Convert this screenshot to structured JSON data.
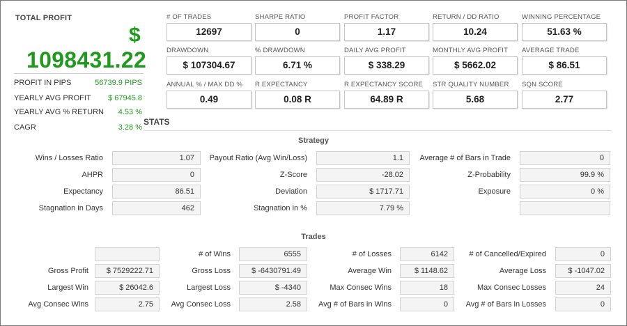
{
  "profit": {
    "title": "TOTAL PROFIT",
    "currency": "$",
    "value": "1098431.22",
    "rows": [
      {
        "label": "PROFIT IN PIPS",
        "value": "56739.9 PIPS"
      },
      {
        "label": "YEARLY AVG PROFIT",
        "value": "$ 67945.8"
      },
      {
        "label": "YEARLY AVG % RETURN",
        "value": "4.53 %"
      },
      {
        "label": "CAGR",
        "value": "3.28 %"
      }
    ]
  },
  "metrics": [
    [
      {
        "label": "# OF TRADES",
        "value": "12697"
      },
      {
        "label": "SHARPE RATIO",
        "value": "0"
      },
      {
        "label": "PROFIT FACTOR",
        "value": "1.17"
      },
      {
        "label": "RETURN / DD RATIO",
        "value": "10.24"
      },
      {
        "label": "WINNING PERCENTAGE",
        "value": "51.63 %"
      }
    ],
    [
      {
        "label": "DRAWDOWN",
        "value": "$ 107304.67"
      },
      {
        "label": "% DRAWDOWN",
        "value": "6.71 %"
      },
      {
        "label": "DAILY AVG PROFIT",
        "value": "$ 338.29"
      },
      {
        "label": "MONTHLY AVG PROFIT",
        "value": "$ 5662.02"
      },
      {
        "label": "AVERAGE TRADE",
        "value": "$ 86.51"
      }
    ],
    [
      {
        "label": "ANNUAL % / MAX DD %",
        "value": "0.49"
      },
      {
        "label": "R EXPECTANCY",
        "value": "0.08 R"
      },
      {
        "label": "R EXPECTANCY SCORE",
        "value": "64.89 R"
      },
      {
        "label": "STR QUALITY NUMBER",
        "value": "5.68"
      },
      {
        "label": "SQN SCORE",
        "value": "2.77"
      }
    ]
  ],
  "stats": {
    "title": "STATS",
    "strategy": {
      "title": "Strategy",
      "rows": [
        [
          {
            "label": "Wins / Losses Ratio",
            "value": "1.07"
          },
          {
            "label": "Payout Ratio (Avg Win/Loss)",
            "value": "1.1"
          },
          {
            "label": "Average # of Bars in Trade",
            "value": "0"
          }
        ],
        [
          {
            "label": "AHPR",
            "value": "0"
          },
          {
            "label": "Z-Score",
            "value": "-28.02"
          },
          {
            "label": "Z-Probability",
            "value": "99.9 %"
          }
        ],
        [
          {
            "label": "Expectancy",
            "value": "86.51"
          },
          {
            "label": "Deviation",
            "value": "$ 1717.71"
          },
          {
            "label": "Exposure",
            "value": "0 %"
          }
        ],
        [
          {
            "label": "Stagnation in Days",
            "value": "462"
          },
          {
            "label": "Stagnation in %",
            "value": "7.79 %"
          },
          {
            "label": "",
            "value": ""
          }
        ]
      ]
    },
    "trades": {
      "title": "Trades",
      "rows": [
        [
          {
            "label": "",
            "value": ""
          },
          {
            "label": "# of Wins",
            "value": "6555"
          },
          {
            "label": "# of Losses",
            "value": "6142"
          },
          {
            "label": "# of Cancelled/Expired",
            "value": "0"
          }
        ],
        [
          {
            "label": "Gross Profit",
            "value": "$ 7529222.71"
          },
          {
            "label": "Gross Loss",
            "value": "$ -6430791.49"
          },
          {
            "label": "Average Win",
            "value": "$ 1148.62"
          },
          {
            "label": "Average Loss",
            "value": "$ -1047.02"
          }
        ],
        [
          {
            "label": "Largest Win",
            "value": "$ 26042.6"
          },
          {
            "label": "Largest Loss",
            "value": "$ -4340"
          },
          {
            "label": "Max Consec Wins",
            "value": "18"
          },
          {
            "label": "Max Consec Losses",
            "value": "24"
          }
        ],
        [
          {
            "label": "Avg Consec Wins",
            "value": "2.75"
          },
          {
            "label": "Avg Consec Loss",
            "value": "2.58"
          },
          {
            "label": "Avg # of Bars in Wins",
            "value": "0"
          },
          {
            "label": "Avg # of Bars in Losses",
            "value": "0"
          }
        ]
      ]
    }
  }
}
